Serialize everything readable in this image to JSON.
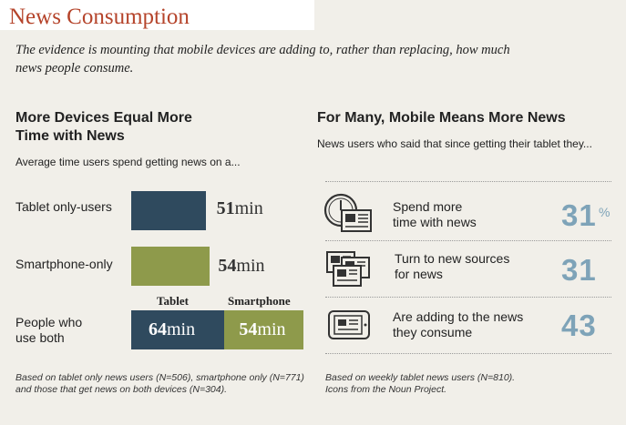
{
  "title": "News Consumption",
  "subtitle": "The evidence is mounting that mobile devices are adding to, rather than replacing, how much news people consume.",
  "left_panel": {
    "heading_line1": "More Devices Equal More",
    "heading_line2": "Time with News",
    "caption": "Average time users spend getting news on a...",
    "col_tablet": "Tablet",
    "col_smartphone": "Smartphone",
    "footnote_line1": "Based on tablet only news users (N=506), smartphone only (N=771)",
    "footnote_line2": "and those that get news on both devices (N=304)."
  },
  "right_panel": {
    "heading": "For Many, Mobile Means More News",
    "caption": "News users who said that since getting their tablet they...",
    "footnote_line1": "Based on weekly tablet news users (N=810).",
    "footnote_line2": "Icons from the Noun Project.",
    "pct_sign": "%"
  },
  "colors": {
    "title": "#b5442b",
    "tablet": "#2f4a5e",
    "smartphone": "#8e9a4b",
    "stat": "#7ea3b8"
  },
  "chart_data": [
    {
      "type": "bar",
      "orientation": "horizontal",
      "unit": "min",
      "rows": [
        {
          "label": "Tablet only-users",
          "segments": [
            {
              "device": "Tablet",
              "value": 51
            }
          ]
        },
        {
          "label": "Smartphone-only",
          "segments": [
            {
              "device": "Smartphone",
              "value": 54
            }
          ]
        },
        {
          "label_line1": "People who",
          "label_line2": "use both",
          "segments": [
            {
              "device": "Tablet",
              "value": 64
            },
            {
              "device": "Smartphone",
              "value": 54
            }
          ]
        }
      ],
      "value_text": {
        "tablet_only": "51",
        "smartphone_only": "54",
        "both_tablet": "64",
        "both_smartphone": "54"
      },
      "unit_text": "min"
    },
    {
      "type": "table",
      "items": [
        {
          "line1": "Spend more",
          "line2": "time with news",
          "value": 31,
          "value_text": "31",
          "icon": "clock-newspaper-icon"
        },
        {
          "line1": "Turn to new sources",
          "line2": "for news",
          "value": 31,
          "value_text": "31",
          "icon": "multiple-newspapers-icon"
        },
        {
          "line1": "Are adding to the news",
          "line2": "they consume",
          "value": 43,
          "value_text": "43",
          "icon": "tablet-newspaper-icon"
        }
      ]
    }
  ]
}
